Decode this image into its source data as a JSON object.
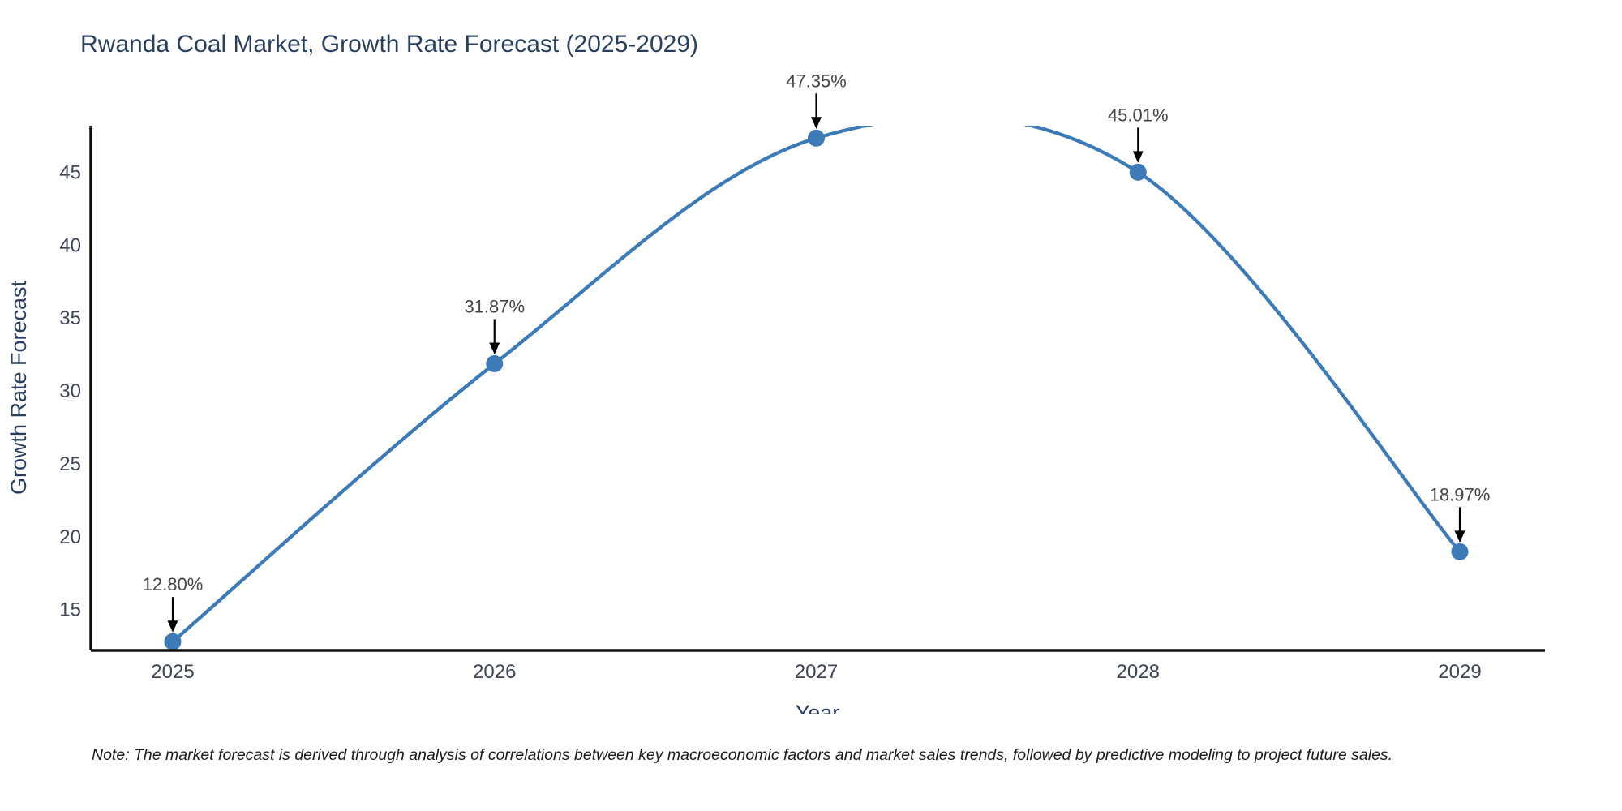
{
  "chart_data": {
    "type": "line",
    "title": "Rwanda Coal Market, Growth Rate Forecast (2025-2029)",
    "xlabel": "Year",
    "ylabel": "Growth Rate Forecast",
    "x": [
      2025,
      2026,
      2027,
      2028,
      2029
    ],
    "series": [
      {
        "name": "Growth Rate Forecast",
        "values": [
          12.8,
          31.87,
          47.35,
          45.01,
          18.97
        ]
      }
    ],
    "point_labels": [
      "12.80%",
      "31.87%",
      "47.35%",
      "45.01%",
      "18.97%"
    ],
    "yticks": [
      15,
      20,
      25,
      30,
      35,
      40,
      45
    ],
    "ylim": [
      12.2,
      48.2
    ],
    "line_shape": "spline",
    "grid": false,
    "legend": "none",
    "annotations_have_arrows": true
  },
  "note": "Note: The market forecast is derived through analysis of correlations between key macroeconomic factors and market sales trends, followed by predictive modeling to project future sales.",
  "colors": {
    "line": "#3d7ab8",
    "marker": "#3d7ab8",
    "axis": "#111111",
    "arrow": "#000000",
    "title_text": "#2a3f5f",
    "tick_text": "#3d4558",
    "annotation_text": "#444444",
    "background": "#ffffff"
  }
}
